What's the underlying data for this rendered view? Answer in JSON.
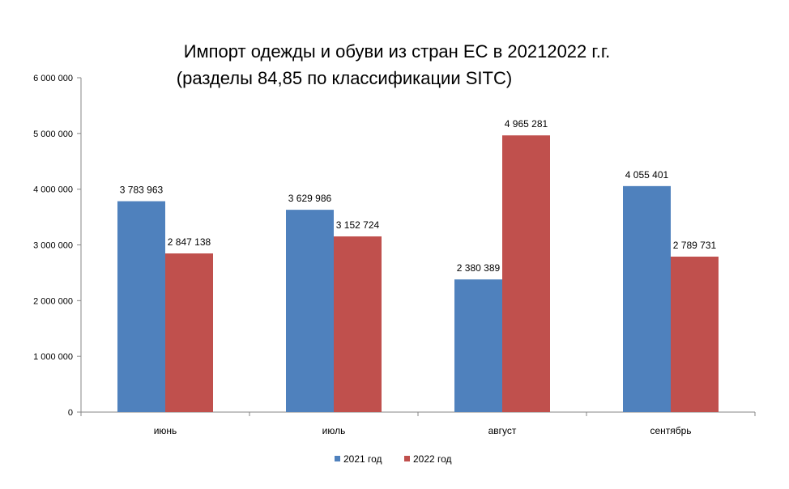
{
  "chart_data": {
    "type": "bar",
    "title_line1": "Импорт одежды и обуви из стран ЕС в 20212022 г.г.",
    "title_line2": "(разделы 84,85 по классификации SITC)",
    "categories": [
      "июнь",
      "июль",
      "август",
      "сентябрь"
    ],
    "series": [
      {
        "name": "2021 год",
        "color": "#4F81BD",
        "values": [
          3783963,
          3629986,
          2380389,
          4055401
        ],
        "labels": [
          "3 783 963",
          "3 629 986",
          "2 380 389",
          "4 055 401"
        ]
      },
      {
        "name": "2022 год",
        "color": "#C0504D",
        "values": [
          2847138,
          3152724,
          4965281,
          2789731
        ],
        "labels": [
          "2 847 138",
          "3 152 724",
          "4 965 281",
          "2 789 731"
        ]
      }
    ],
    "ylim": [
      0,
      6000000
    ],
    "yticks": [
      0,
      1000000,
      2000000,
      3000000,
      4000000,
      5000000,
      6000000
    ],
    "ytick_labels": [
      "0",
      "1 000 000",
      "2 000 000",
      "3 000 000",
      "4 000 000",
      "5 000 000",
      "6 000 000"
    ],
    "legend_position": "bottom",
    "grid": false
  }
}
